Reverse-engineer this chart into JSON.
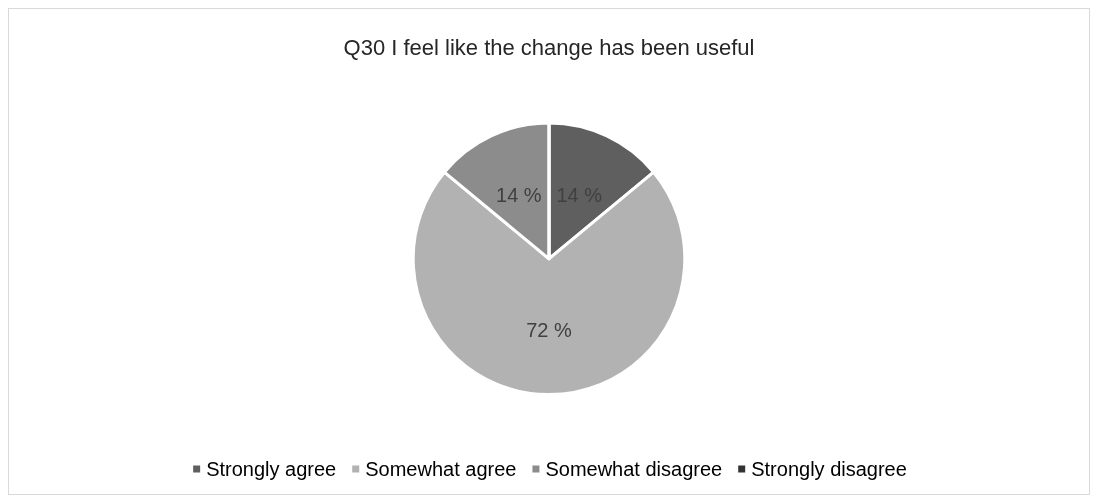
{
  "chart_data": {
    "type": "pie",
    "title": "Q30 I feel like the change has been useful",
    "categories": [
      "Strongly agree",
      "Somewhat agree",
      "Somewhat disagree",
      "Strongly disagree"
    ],
    "values": [
      14,
      72,
      14,
      0
    ],
    "colors": [
      "#5f5f5f",
      "#b2b2b2",
      "#8c8c8c",
      "#333333"
    ],
    "value_labels": [
      "14 %",
      "72 %",
      "14 %",
      null
    ],
    "legend": "bottom"
  }
}
